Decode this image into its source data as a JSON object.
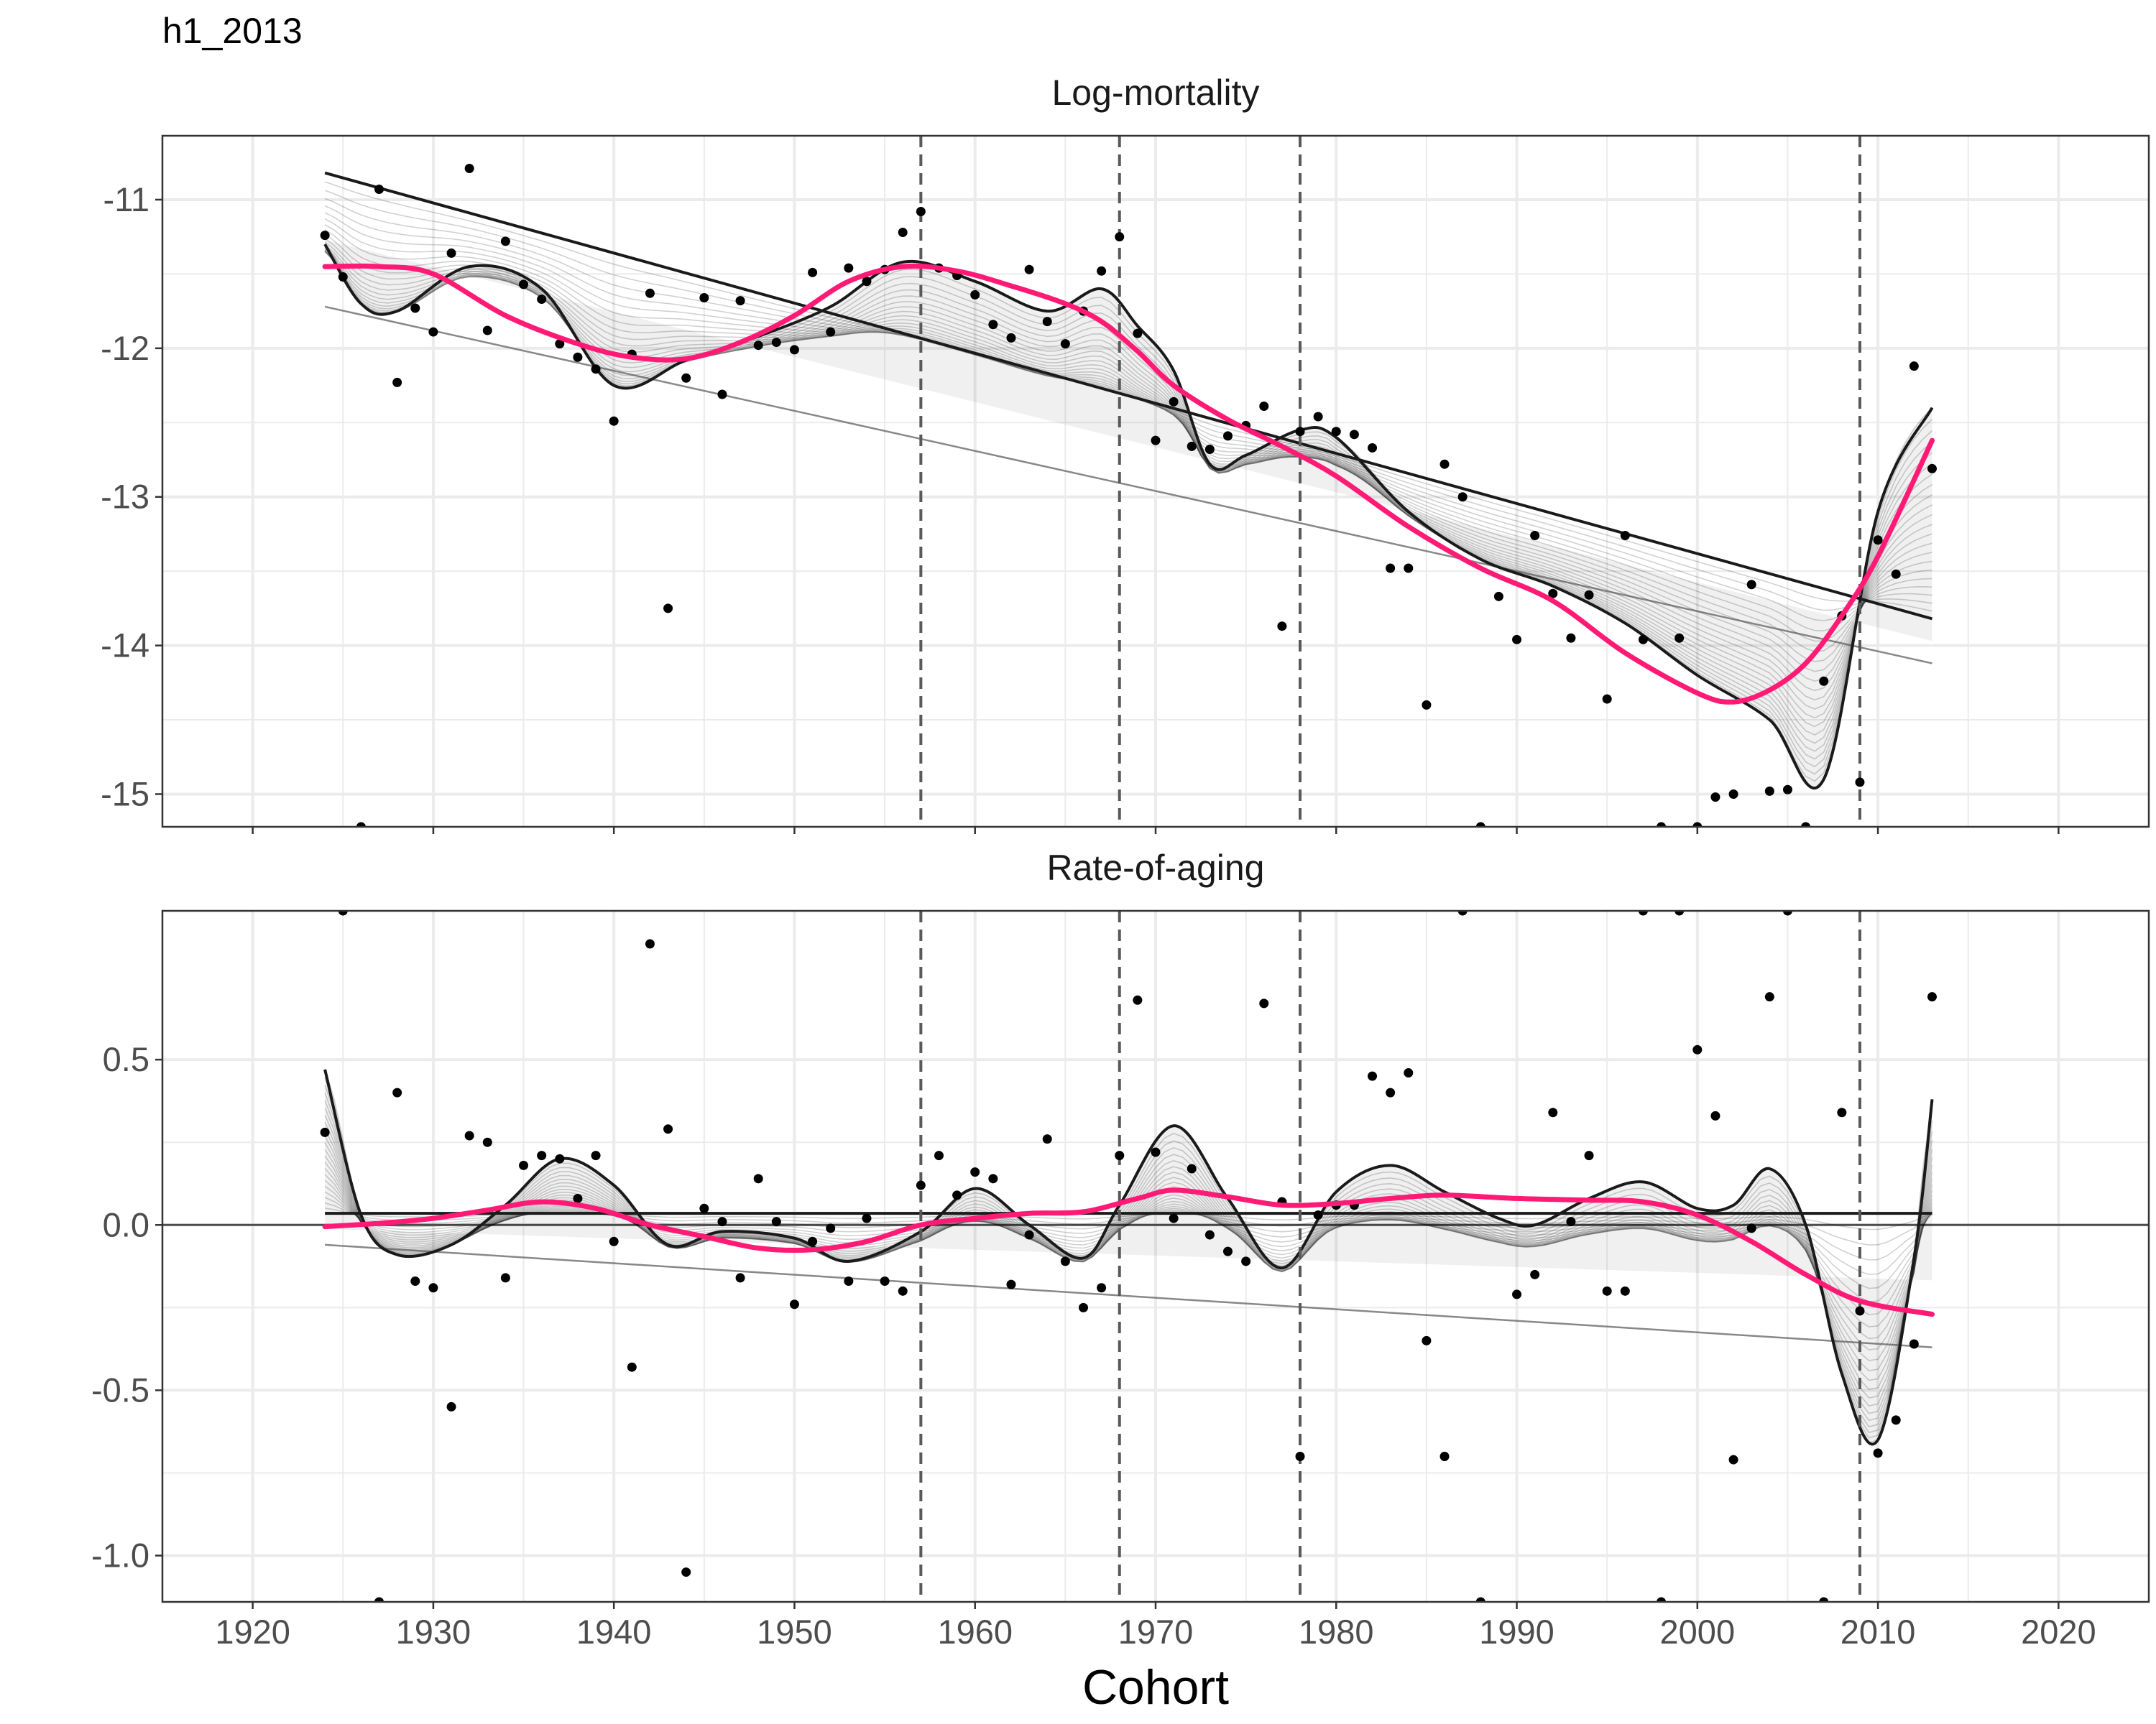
{
  "figure": {
    "title": "h1_2013",
    "xlabel": "Cohort",
    "colors": {
      "panel_border": "#333333",
      "grid": "#ebebeb",
      "tick_label": "#4d4d4d",
      "points": "#000000",
      "smooth_curve": "#ff1a75",
      "spline_bundle": "#000000",
      "vline": "#595959",
      "zero_line": "#4d4d4d"
    }
  },
  "chart_data": [
    {
      "type": "scatter",
      "title": "Log-mortality",
      "xlabel": "Cohort",
      "ylabel": "",
      "xlim": [
        1915,
        2025
      ],
      "ylim": [
        -15.22,
        -10.57
      ],
      "xticks": [
        1920,
        1930,
        1940,
        1950,
        1960,
        1970,
        1980,
        1990,
        2000,
        2010,
        2020
      ],
      "yticks": [
        -15,
        -14,
        -13,
        -12,
        -11
      ],
      "ytick_labels": [
        "-15",
        "-14",
        "-13",
        "-12",
        "-11"
      ],
      "grid": true,
      "vlines": [
        1957,
        1968,
        1978,
        2009
      ],
      "points": [
        [
          1924,
          -11.24
        ],
        [
          1925,
          -11.52
        ],
        [
          1926,
          -15.22
        ],
        [
          1927,
          -10.93
        ],
        [
          1928,
          -12.23
        ],
        [
          1929,
          -11.73
        ],
        [
          1930,
          -11.89
        ],
        [
          1931,
          -11.36
        ],
        [
          1932,
          -10.79
        ],
        [
          1933,
          -11.88
        ],
        [
          1934,
          -11.28
        ],
        [
          1935,
          -11.57
        ],
        [
          1936,
          -11.67
        ],
        [
          1937,
          -11.97
        ],
        [
          1938,
          -12.06
        ],
        [
          1939,
          -12.14
        ],
        [
          1940,
          -12.49
        ],
        [
          1941,
          -12.04
        ],
        [
          1942,
          -11.63
        ],
        [
          1943,
          -13.75
        ],
        [
          1944,
          -12.2
        ],
        [
          1945,
          -11.66
        ],
        [
          1946,
          -12.31
        ],
        [
          1947,
          -11.68
        ],
        [
          1948,
          -11.98
        ],
        [
          1949,
          -11.96
        ],
        [
          1950,
          -12.01
        ],
        [
          1951,
          -11.49
        ],
        [
          1952,
          -11.89
        ],
        [
          1953,
          -11.46
        ],
        [
          1954,
          -11.55
        ],
        [
          1955,
          -11.47
        ],
        [
          1956,
          -11.22
        ],
        [
          1957,
          -11.08
        ],
        [
          1958,
          -11.46
        ],
        [
          1959,
          -11.51
        ],
        [
          1960,
          -11.64
        ],
        [
          1961,
          -11.84
        ],
        [
          1962,
          -11.93
        ],
        [
          1963,
          -11.47
        ],
        [
          1964,
          -11.82
        ],
        [
          1965,
          -11.97
        ],
        [
          1966,
          -11.75
        ],
        [
          1967,
          -11.48
        ],
        [
          1968,
          -11.25
        ],
        [
          1969,
          -11.9
        ],
        [
          1970,
          -12.62
        ],
        [
          1971,
          -12.36
        ],
        [
          1972,
          -12.66
        ],
        [
          1973,
          -12.68
        ],
        [
          1974,
          -12.59
        ],
        [
          1975,
          -12.52
        ],
        [
          1976,
          -12.39
        ],
        [
          1977,
          -13.87
        ],
        [
          1978,
          -12.56
        ],
        [
          1979,
          -12.46
        ],
        [
          1980,
          -12.56
        ],
        [
          1981,
          -12.58
        ],
        [
          1982,
          -12.67
        ],
        [
          1983,
          -13.48
        ],
        [
          1984,
          -13.48
        ],
        [
          1985,
          -14.4
        ],
        [
          1986,
          -12.78
        ],
        [
          1987,
          -13.0
        ],
        [
          1988,
          -15.22
        ],
        [
          1989,
          -13.67
        ],
        [
          1990,
          -13.96
        ],
        [
          1991,
          -13.26
        ],
        [
          1992,
          -13.65
        ],
        [
          1993,
          -13.95
        ],
        [
          1994,
          -13.66
        ],
        [
          1995,
          -14.36
        ],
        [
          1996,
          -13.26
        ],
        [
          1997,
          -13.96
        ],
        [
          1998,
          -15.22
        ],
        [
          1999,
          -13.95
        ],
        [
          2000,
          -15.22
        ],
        [
          2001,
          -15.02
        ],
        [
          2002,
          -15.0
        ],
        [
          2003,
          -13.59
        ],
        [
          2004,
          -14.98
        ],
        [
          2005,
          -14.97
        ],
        [
          2006,
          -15.22
        ],
        [
          2007,
          -14.24
        ],
        [
          2008,
          -13.8
        ],
        [
          2009,
          -14.92
        ],
        [
          2010,
          -13.29
        ],
        [
          2011,
          -13.52
        ],
        [
          2012,
          -12.12
        ],
        [
          2013,
          -12.81
        ]
      ],
      "linear_fit": {
        "x": [
          1924,
          2013
        ],
        "y": [
          -10.82,
          -13.82
        ]
      },
      "flat_fit": {
        "x": [
          1924,
          2013
        ],
        "y": [
          -11.72,
          -14.12
        ]
      },
      "wiggly_fit": {
        "x": [
          1924,
          1926,
          1928,
          1932,
          1936,
          1940,
          1944,
          1948,
          1952,
          1956,
          1960,
          1964,
          1967,
          1969,
          1971,
          1973,
          1975,
          1978,
          1980,
          1984,
          1988,
          1992,
          1996,
          2000,
          2004,
          2007,
          2010,
          2013
        ],
        "y": [
          -11.3,
          -11.7,
          -11.75,
          -11.45,
          -11.6,
          -12.25,
          -12.08,
          -11.92,
          -11.72,
          -11.42,
          -11.55,
          -11.75,
          -11.6,
          -11.85,
          -12.15,
          -12.78,
          -12.72,
          -12.55,
          -12.6,
          -13.1,
          -13.42,
          -13.6,
          -13.85,
          -14.2,
          -14.5,
          -14.9,
          -13.1,
          -12.4
        ]
      },
      "smooth_curve": {
        "x": [
          1924,
          1927,
          1930,
          1934,
          1938,
          1941,
          1944,
          1947,
          1950,
          1953,
          1956,
          1959,
          1962,
          1965,
          1967,
          1969,
          1971,
          1974,
          1977,
          1980,
          1984,
          1988,
          1992,
          1996,
          2000,
          2002,
          2004,
          2006,
          2008,
          2010,
          2013
        ],
        "y": [
          -11.45,
          -11.45,
          -11.5,
          -11.78,
          -11.97,
          -12.06,
          -12.07,
          -11.96,
          -11.78,
          -11.55,
          -11.45,
          -11.48,
          -11.58,
          -11.7,
          -11.82,
          -12.02,
          -12.25,
          -12.48,
          -12.66,
          -12.86,
          -13.2,
          -13.48,
          -13.7,
          -14.05,
          -14.32,
          -14.38,
          -14.3,
          -14.12,
          -13.8,
          -13.4,
          -12.62
        ]
      }
    },
    {
      "type": "scatter",
      "title": "Rate-of-aging",
      "xlabel": "Cohort",
      "ylabel": "",
      "xlim": [
        1915,
        2025
      ],
      "ylim": [
        -1.14,
        0.95
      ],
      "xticks": [
        1920,
        1930,
        1940,
        1950,
        1960,
        1970,
        1980,
        1990,
        2000,
        2010,
        2020
      ],
      "xtick_labels": [
        "1920",
        "1930",
        "1940",
        "1950",
        "1960",
        "1970",
        "1980",
        "1990",
        "2000",
        "2010",
        "2020"
      ],
      "yticks": [
        -1.0,
        -0.5,
        0.0,
        0.5
      ],
      "ytick_labels": [
        "-1.0",
        "-0.5",
        "0.0",
        "0.5"
      ],
      "grid": true,
      "hline": 0,
      "vlines": [
        1957,
        1968,
        1978,
        2009
      ],
      "points": [
        [
          1924,
          0.28
        ],
        [
          1925,
          0.95
        ],
        [
          1927,
          -1.14
        ],
        [
          1928,
          0.4
        ],
        [
          1929,
          -0.17
        ],
        [
          1930,
          -0.19
        ],
        [
          1931,
          -0.55
        ],
        [
          1932,
          0.27
        ],
        [
          1933,
          0.25
        ],
        [
          1934,
          -0.16
        ],
        [
          1935,
          0.18
        ],
        [
          1936,
          0.21
        ],
        [
          1937,
          0.2
        ],
        [
          1938,
          0.08
        ],
        [
          1939,
          0.21
        ],
        [
          1940,
          -0.05
        ],
        [
          1941,
          -0.43
        ],
        [
          1942,
          0.85
        ],
        [
          1943,
          0.29
        ],
        [
          1944,
          -1.05
        ],
        [
          1945,
          0.05
        ],
        [
          1946,
          0.01
        ],
        [
          1947,
          -0.16
        ],
        [
          1948,
          0.14
        ],
        [
          1949,
          0.01
        ],
        [
          1950,
          -0.24
        ],
        [
          1951,
          -0.05
        ],
        [
          1952,
          -0.01
        ],
        [
          1953,
          -0.17
        ],
        [
          1954,
          0.02
        ],
        [
          1955,
          -0.17
        ],
        [
          1956,
          -0.2
        ],
        [
          1957,
          0.12
        ],
        [
          1958,
          0.21
        ],
        [
          1959,
          0.09
        ],
        [
          1960,
          0.16
        ],
        [
          1961,
          0.14
        ],
        [
          1962,
          -0.18
        ],
        [
          1963,
          -0.03
        ],
        [
          1964,
          0.26
        ],
        [
          1965,
          -0.11
        ],
        [
          1966,
          -0.25
        ],
        [
          1967,
          -0.19
        ],
        [
          1968,
          0.21
        ],
        [
          1969,
          0.68
        ],
        [
          1970,
          0.22
        ],
        [
          1971,
          0.02
        ],
        [
          1972,
          0.17
        ],
        [
          1973,
          -0.03
        ],
        [
          1974,
          -0.08
        ],
        [
          1975,
          -0.11
        ],
        [
          1976,
          0.67
        ],
        [
          1977,
          0.07
        ],
        [
          1978,
          -0.7
        ],
        [
          1979,
          0.03
        ],
        [
          1980,
          0.06
        ],
        [
          1981,
          0.06
        ],
        [
          1982,
          0.45
        ],
        [
          1983,
          0.4
        ],
        [
          1984,
          0.46
        ],
        [
          1985,
          -0.35
        ],
        [
          1986,
          -0.7
        ],
        [
          1987,
          0.95
        ],
        [
          1988,
          -1.14
        ],
        [
          1990,
          -0.21
        ],
        [
          1991,
          -0.15
        ],
        [
          1992,
          0.34
        ],
        [
          1993,
          0.01
        ],
        [
          1994,
          0.21
        ],
        [
          1995,
          -0.2
        ],
        [
          1996,
          -0.2
        ],
        [
          1997,
          0.95
        ],
        [
          1998,
          -1.14
        ],
        [
          1999,
          0.95
        ],
        [
          2000,
          0.53
        ],
        [
          2001,
          0.33
        ],
        [
          2002,
          -0.71
        ],
        [
          2003,
          -0.01
        ],
        [
          2004,
          0.69
        ],
        [
          2005,
          0.95
        ],
        [
          2007,
          -1.14
        ],
        [
          2008,
          0.34
        ],
        [
          2009,
          -0.26
        ],
        [
          2010,
          -0.69
        ],
        [
          2011,
          -0.59
        ],
        [
          2012,
          -0.36
        ],
        [
          2013,
          0.69
        ]
      ],
      "linear_fit": {
        "x": [
          1924,
          2013
        ],
        "y": [
          0.035,
          0.035
        ]
      },
      "flat_fit": {
        "x": [
          1924,
          2013
        ],
        "y": [
          -0.06,
          -0.37
        ]
      },
      "wiggly_fit": {
        "x": [
          1924,
          1926,
          1928,
          1931,
          1934,
          1937,
          1940,
          1943,
          1946,
          1950,
          1953,
          1957,
          1960,
          1963,
          1966,
          1968,
          1971,
          1974,
          1977,
          1980,
          1983,
          1986,
          1989,
          1991,
          1994,
          1997,
          2000,
          2002,
          2004,
          2006,
          2008,
          2010,
          2012,
          2013
        ],
        "y": [
          0.47,
          0.03,
          -0.09,
          -0.06,
          0.06,
          0.2,
          0.12,
          -0.06,
          -0.02,
          -0.04,
          -0.11,
          -0.02,
          0.11,
          0.0,
          -0.1,
          0.06,
          0.3,
          0.08,
          -0.13,
          0.1,
          0.18,
          0.1,
          0.02,
          0.0,
          0.08,
          0.13,
          0.05,
          0.06,
          0.17,
          0.0,
          -0.45,
          -0.65,
          -0.1,
          0.38
        ]
      },
      "smooth_curve": {
        "x": [
          1924,
          1927,
          1930,
          1933,
          1936,
          1939,
          1942,
          1945,
          1948,
          1951,
          1954,
          1957,
          1960,
          1963,
          1966,
          1969,
          1971,
          1974,
          1977,
          1980,
          1983,
          1986,
          1990,
          1994,
          1997,
          2000,
          2003,
          2006,
          2009,
          2013
        ],
        "y": [
          -0.005,
          0.005,
          0.02,
          0.045,
          0.07,
          0.05,
          0.0,
          -0.035,
          -0.07,
          -0.075,
          -0.05,
          0.0,
          0.02,
          0.035,
          0.04,
          0.08,
          0.105,
          0.085,
          0.06,
          0.065,
          0.08,
          0.09,
          0.08,
          0.075,
          0.07,
          0.03,
          -0.05,
          -0.15,
          -0.23,
          -0.27
        ]
      }
    }
  ]
}
